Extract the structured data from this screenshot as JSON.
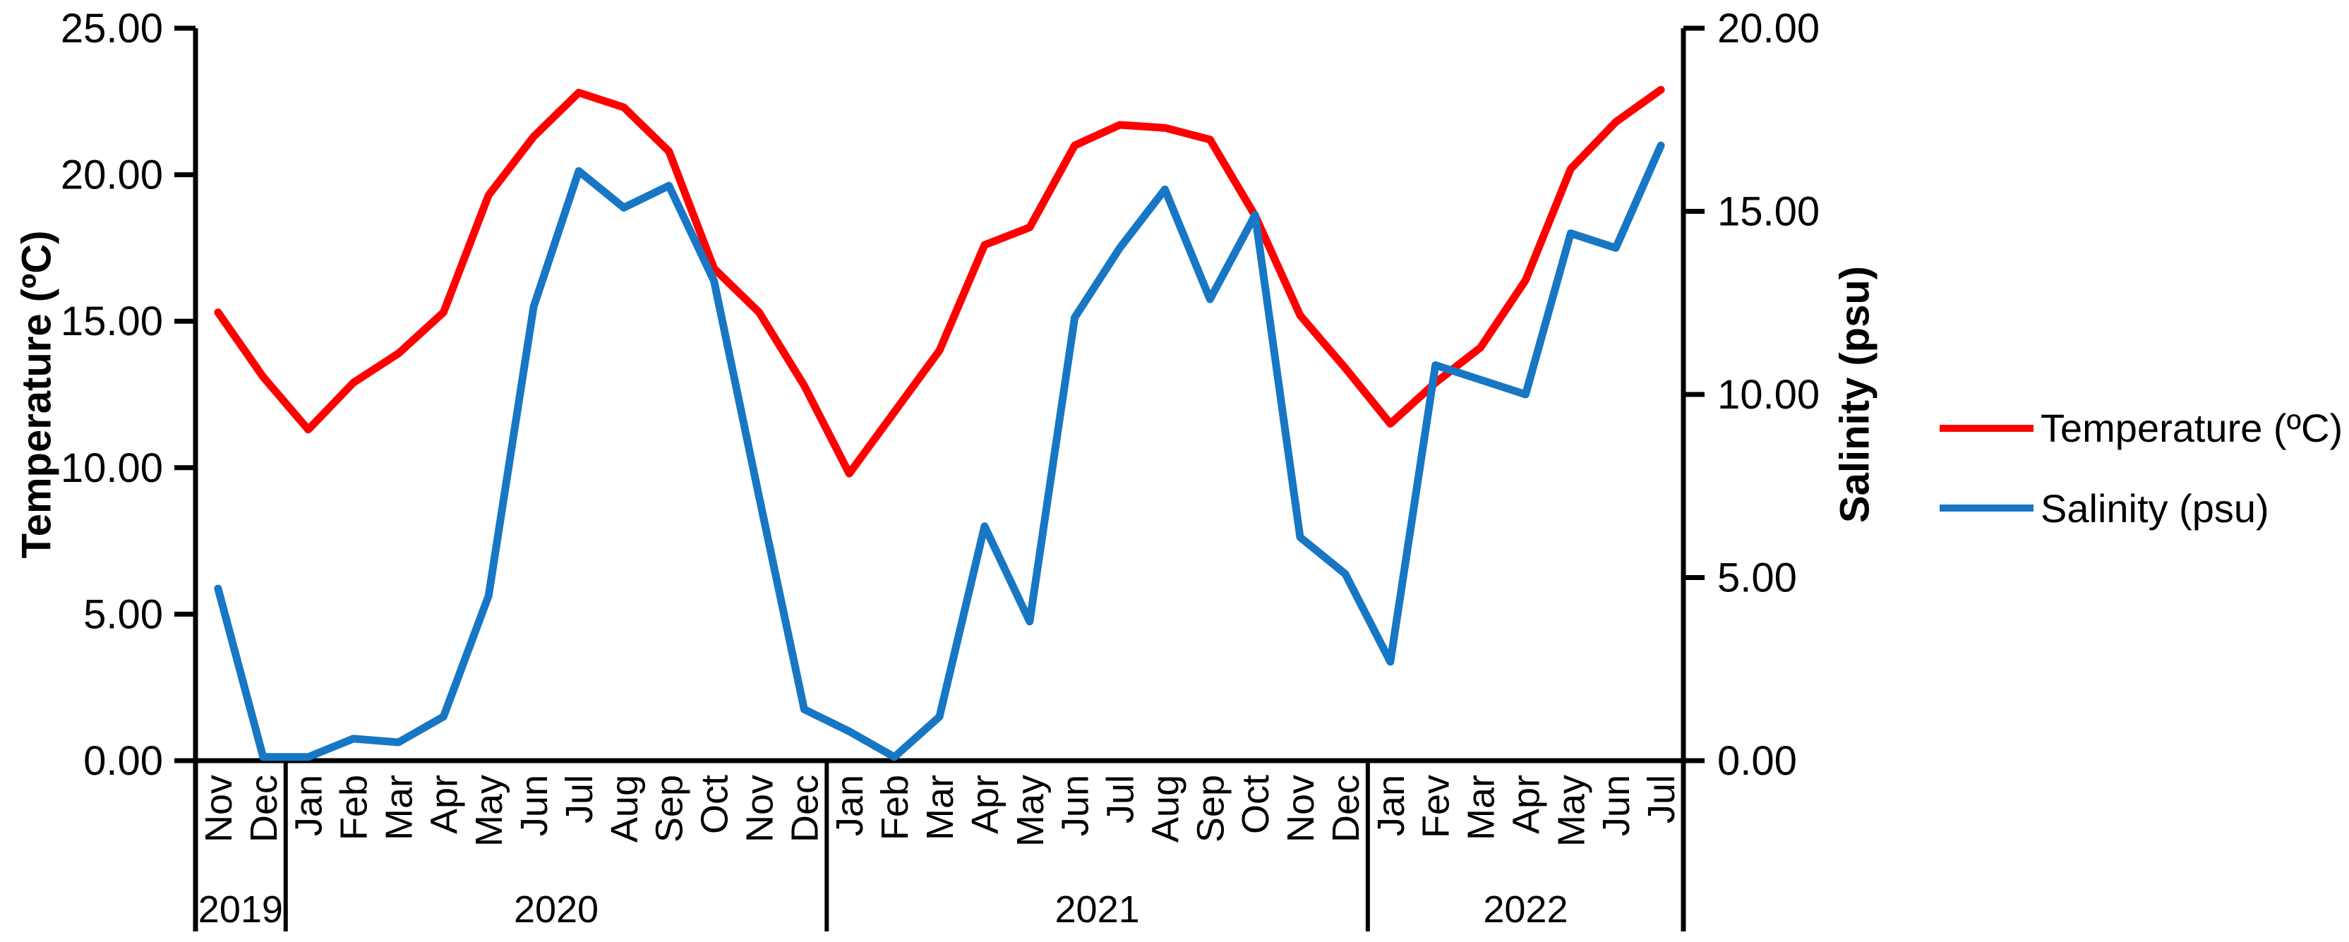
{
  "chart_data": {
    "type": "line",
    "title": "",
    "legend_position": "right",
    "grid": false,
    "x_months": [
      "Nov",
      "Dec",
      "Jan",
      "Feb",
      "Mar",
      "Apr",
      "May",
      "Jun",
      "Jul",
      "Aug",
      "Sep",
      "Oct",
      "Nov",
      "Dec",
      "Jan",
      "Feb",
      "Mar",
      "Apr",
      "May",
      "Jun",
      "Jul",
      "Aug",
      "Sep",
      "Oct",
      "Nov",
      "Dec",
      "Jan",
      "Fev",
      "Mar",
      "Apr",
      "May",
      "Jun",
      "Jul"
    ],
    "year_groups": [
      {
        "label": "2019",
        "months": 2
      },
      {
        "label": "2020",
        "months": 12
      },
      {
        "label": "2021",
        "months": 12
      },
      {
        "label": "2022",
        "months": 7
      }
    ],
    "left_axis": {
      "label": "Temperature (ºC)",
      "min": 0,
      "max": 25,
      "step": 5,
      "tick_labels": [
        "25.00",
        "20.00",
        "15.00",
        "10.00",
        "5.00",
        "0.00"
      ]
    },
    "right_axis": {
      "label": "Salinity (psu)",
      "min": 0,
      "max": 20,
      "step": 5,
      "tick_labels": [
        "20.00",
        "15.00",
        "10.00",
        "5.00",
        "0.00"
      ]
    },
    "series": [
      {
        "name": "Temperature (ºC)",
        "color": "#ff0000",
        "axis": "left",
        "values": [
          15.3,
          13.1,
          11.3,
          12.9,
          13.9,
          15.3,
          19.3,
          21.3,
          22.8,
          22.3,
          20.8,
          16.8,
          15.3,
          12.8,
          9.8,
          11.9,
          14.0,
          17.6,
          18.2,
          21.0,
          21.7,
          21.6,
          21.2,
          18.6,
          15.2,
          13.4,
          11.5,
          12.9,
          14.1,
          16.4,
          20.2,
          21.8,
          22.9
        ]
      },
      {
        "name": "Salinity (psu)",
        "color": "#1777c4",
        "axis": "right",
        "values": [
          4.7,
          0.1,
          0.1,
          0.6,
          0.5,
          1.2,
          4.5,
          12.4,
          16.1,
          15.1,
          15.7,
          13.1,
          7.2,
          1.4,
          0.8,
          0.1,
          1.2,
          6.4,
          3.8,
          12.1,
          14.0,
          15.6,
          12.6,
          14.9,
          6.1,
          5.1,
          2.7,
          10.8,
          10.4,
          10.0,
          14.4,
          14.0,
          16.8
        ]
      }
    ]
  }
}
